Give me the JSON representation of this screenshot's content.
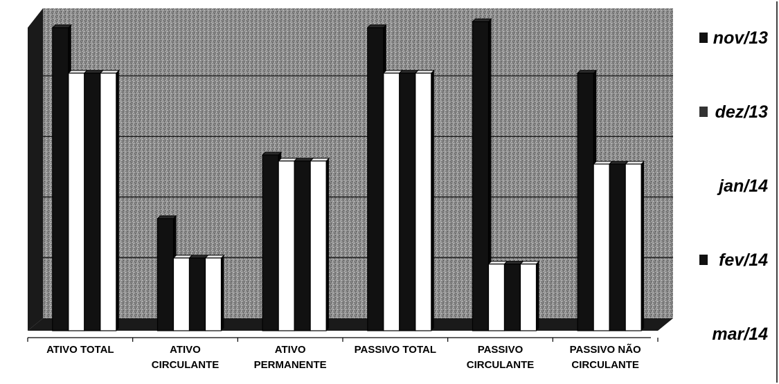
{
  "chart_data": {
    "type": "bar",
    "categories": [
      [
        "ATIVO TOTAL"
      ],
      [
        "ATIVO",
        "CIRCULANTE"
      ],
      [
        "ATIVO",
        "PERMANENTE"
      ],
      [
        "PASSIVO TOTAL"
      ],
      [
        "PASSIVO",
        "CIRCULANTE"
      ],
      [
        "PASSIVO NÃO",
        "CIRCULANTE"
      ]
    ],
    "series": [
      {
        "name": "nov/13",
        "color": "#111111",
        "values": [
          100,
          37,
          58,
          100,
          102,
          85
        ]
      },
      {
        "name": "dez/13",
        "color": "#ffffff",
        "values": [
          85,
          24,
          56,
          85,
          22,
          55
        ]
      },
      {
        "name": "jan/14",
        "color": "#111111",
        "values": [
          85,
          24,
          56,
          85,
          22,
          55
        ]
      },
      {
        "name": "fev/14",
        "color": "#ffffff",
        "values": [
          85,
          24,
          56,
          85,
          22,
          55
        ]
      },
      {
        "name": "mar/14",
        "color": "#111111",
        "values": [
          0,
          0,
          0,
          0,
          0,
          0
        ]
      }
    ],
    "legend": {
      "position": "right",
      "items": [
        {
          "label": "nov/13",
          "marker": "square",
          "marker_color": "#111111"
        },
        {
          "label": "dez/13",
          "marker": "square",
          "marker_color": "#333333"
        },
        {
          "label": "jan/14",
          "marker": "none"
        },
        {
          "label": "fev/14",
          "marker": "square",
          "marker_color": "#111111"
        },
        {
          "label": "mar/14",
          "marker": "none"
        }
      ]
    },
    "ylim": [
      0,
      100
    ],
    "grid": true,
    "title": "",
    "xlabel": "",
    "ylabel": ""
  }
}
